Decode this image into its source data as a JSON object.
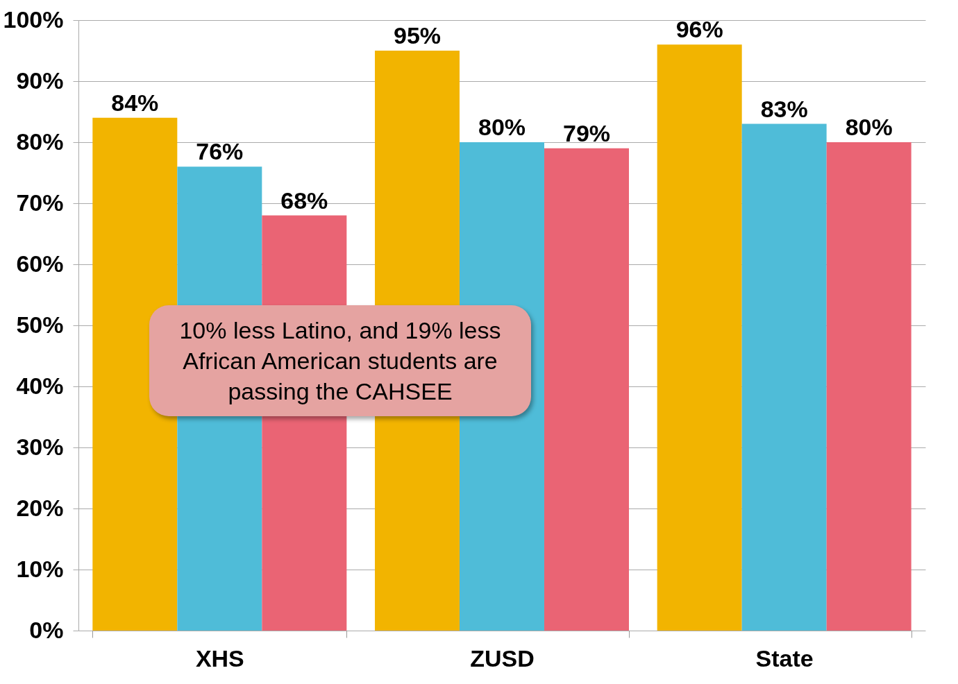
{
  "chart_data": {
    "type": "bar",
    "categories": [
      "XHS",
      "ZUSD",
      "State"
    ],
    "series": [
      {
        "color": "#f2b400",
        "values": [
          84,
          95,
          96
        ],
        "value_labels": [
          "84%",
          "95%",
          "96%"
        ]
      },
      {
        "color": "#4fbcd8",
        "values": [
          76,
          80,
          83
        ],
        "value_labels": [
          "76%",
          "80%",
          "83%"
        ]
      },
      {
        "color": "#ea6474",
        "values": [
          68,
          79,
          80
        ],
        "value_labels": [
          "68%",
          "79%",
          "80%"
        ]
      }
    ],
    "ylim": [
      0,
      100
    ],
    "yticks": [
      {
        "value": 0,
        "label": "0%"
      },
      {
        "value": 10,
        "label": "10%"
      },
      {
        "value": 20,
        "label": "20%"
      },
      {
        "value": 30,
        "label": "30%"
      },
      {
        "value": 40,
        "label": "40%"
      },
      {
        "value": 50,
        "label": "50%"
      },
      {
        "value": 60,
        "label": "60%"
      },
      {
        "value": 70,
        "label": "70%"
      },
      {
        "value": 80,
        "label": "80%"
      },
      {
        "value": 90,
        "label": "90%"
      },
      {
        "value": 100,
        "label": "100%"
      }
    ],
    "grid": "y",
    "legend": false,
    "annotations": [
      "10% less Latino, and 19% less African American students are passing the CAHSEE"
    ]
  }
}
